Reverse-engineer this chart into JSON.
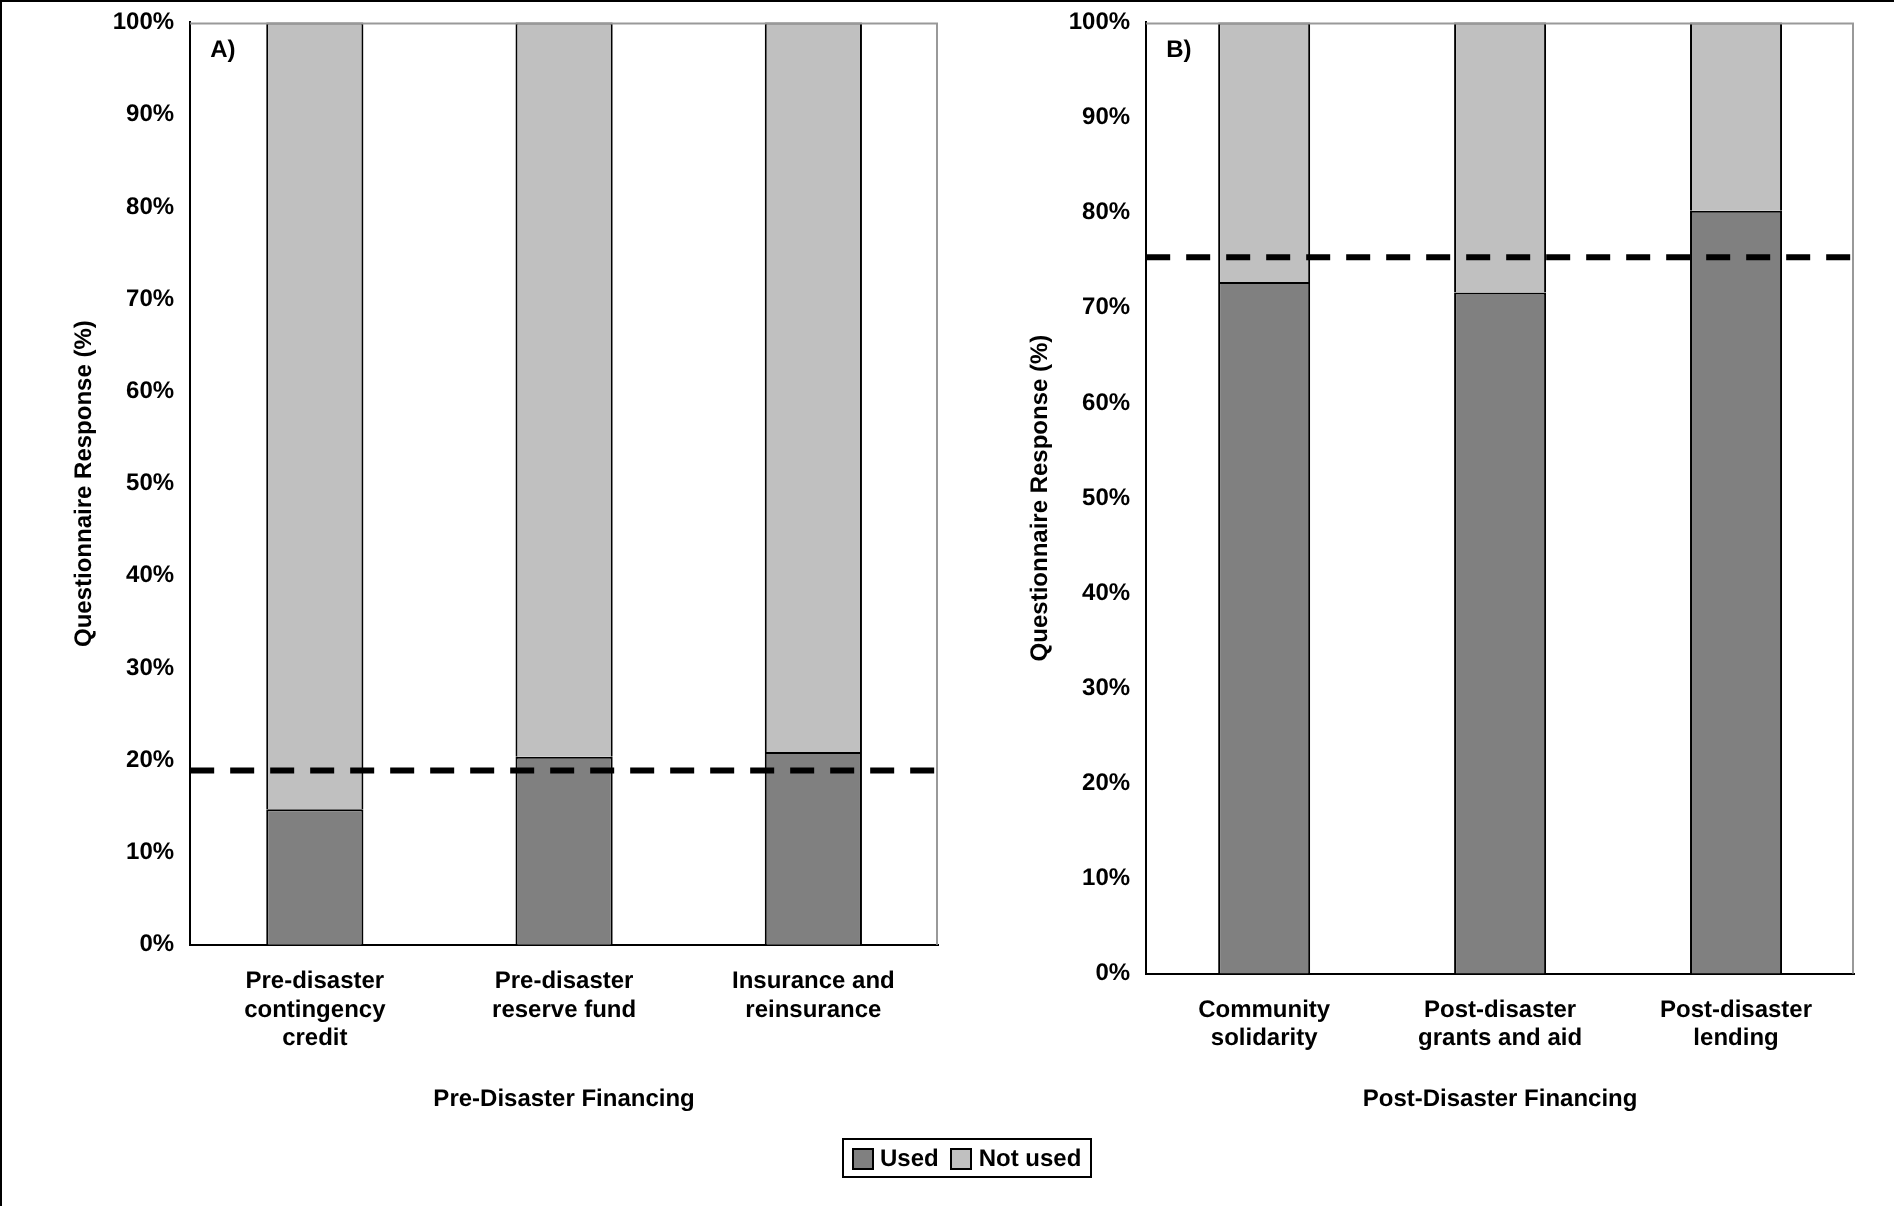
{
  "chart_data": [
    {
      "type": "bar",
      "stacked": true,
      "categories": [
        "Pre-disaster contingency credit",
        "Pre-disaster reserve fund",
        "Insurance and reinsurance"
      ],
      "series": [
        {
          "name": "Used",
          "color": "#808080",
          "values": [
            14.7,
            20.4,
            20.9
          ]
        },
        {
          "name": "Not used",
          "color": "#c0c0c0",
          "values": [
            85.3,
            79.6,
            79.1
          ]
        }
      ],
      "ylabel": "Questionnaire Response (%)",
      "xlabel": "Pre-Disaster Financing",
      "ylim": [
        0,
        100
      ],
      "yticks": [
        {
          "value": 0,
          "label": "0%"
        },
        {
          "value": 10,
          "label": "10%"
        },
        {
          "value": 20,
          "label": "20%"
        },
        {
          "value": 30,
          "label": "30%"
        },
        {
          "value": 40,
          "label": "40%"
        },
        {
          "value": 50,
          "label": "50%"
        },
        {
          "value": 60,
          "label": "60%"
        },
        {
          "value": 70,
          "label": "70%"
        },
        {
          "value": 80,
          "label": "80%"
        },
        {
          "value": 90,
          "label": "90%"
        },
        {
          "value": 100,
          "label": "100%"
        }
      ],
      "ref_lines": [
        {
          "axis": "y",
          "value": 18.9,
          "color": "#000000",
          "line_style": "dashed"
        }
      ],
      "annotations": [
        "A)"
      ],
      "grid": false,
      "legend": "bottom"
    },
    {
      "type": "bar",
      "stacked": true,
      "categories": [
        "Community solidarity",
        "Post-disaster grants and aid",
        "Post-disaster lending"
      ],
      "series": [
        {
          "color": "#808080",
          "values": [
            72.7,
            71.6,
            80.2
          ]
        },
        {
          "color": "#c0c0c0",
          "values": [
            27.3,
            28.4,
            19.8
          ]
        }
      ],
      "ylabel": "Questionnaire Response (%)",
      "xlabel": "Post-Disaster Financing",
      "ylim": [
        0,
        100
      ],
      "yticks": [
        {
          "value": 0,
          "label": "0%"
        },
        {
          "value": 10,
          "label": "10%"
        },
        {
          "value": 20,
          "label": "20%"
        },
        {
          "value": 30,
          "label": "30%"
        },
        {
          "value": 40,
          "label": "40%"
        },
        {
          "value": 50,
          "label": "50%"
        },
        {
          "value": 60,
          "label": "60%"
        },
        {
          "value": 70,
          "label": "70%"
        },
        {
          "value": 80,
          "label": "80%"
        },
        {
          "value": 90,
          "label": "90%"
        },
        {
          "value": 100,
          "label": "100%"
        }
      ],
      "ref_lines": [
        {
          "axis": "y",
          "value": 75.3,
          "color": "#000000",
          "line_style": "dashed"
        }
      ],
      "annotations": [
        "B)"
      ],
      "grid": false
    }
  ]
}
